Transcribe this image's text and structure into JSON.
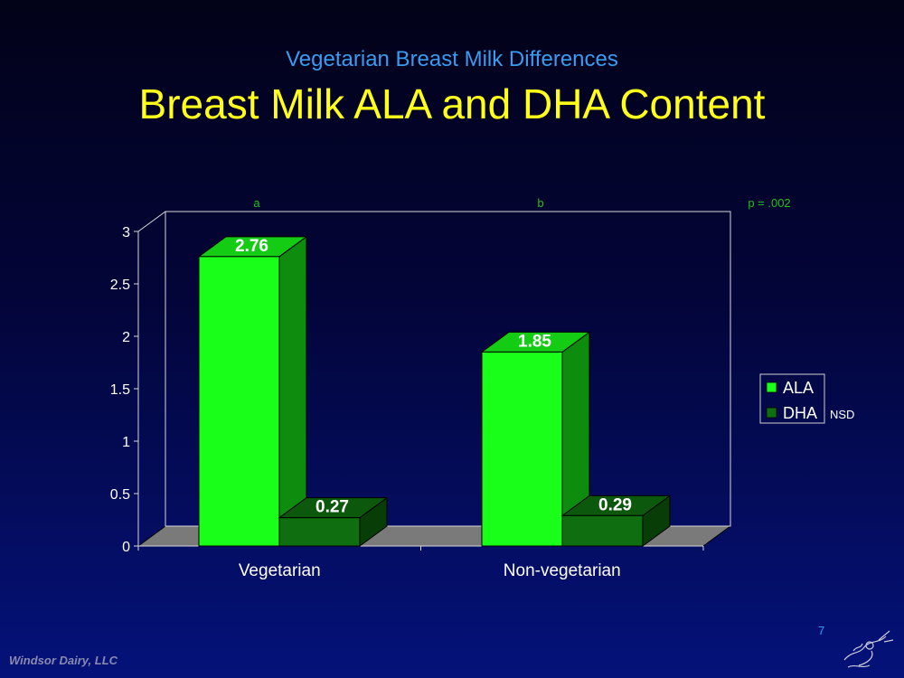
{
  "slide": {
    "subtitle": "Vegetarian Breast Milk Differences",
    "title": "Breast Milk ALA and DHA Content",
    "footer": "Windsor Dairy, LLC",
    "page_number": "7"
  },
  "chart_data": {
    "type": "bar",
    "categories": [
      "Vegetarian",
      "Non-vegetarian"
    ],
    "series": [
      {
        "name": "ALA",
        "values": [
          2.76,
          1.85
        ],
        "labels": [
          "2.76",
          "1.85"
        ],
        "color": "#1aff1a"
      },
      {
        "name": "DHA",
        "values": [
          0.27,
          0.29
        ],
        "labels": [
          "0.27",
          "0.29"
        ],
        "color": "#0f6e0f"
      }
    ],
    "ylim": [
      0,
      3
    ],
    "yticks": [
      "0",
      "0.5",
      "1",
      "1.5",
      "2",
      "2.5",
      "3"
    ],
    "annotations": [
      "a",
      "b",
      "p = .002",
      "NSD"
    ],
    "legend_position": "right",
    "three_d": true
  }
}
